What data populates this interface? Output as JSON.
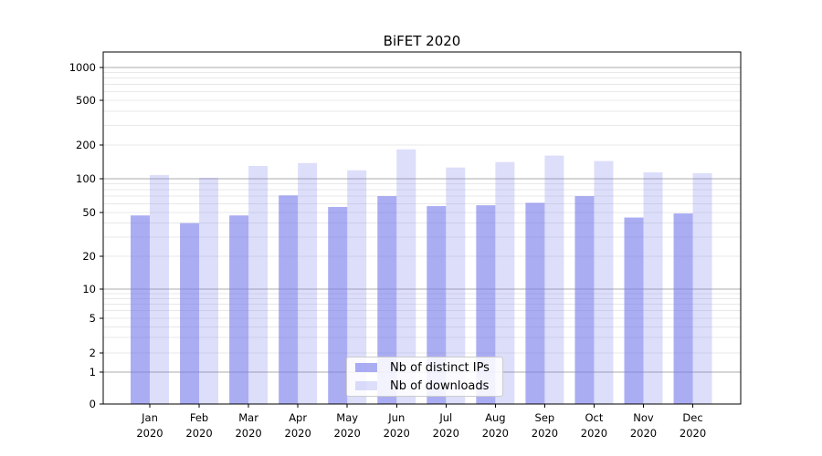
{
  "chart_data": {
    "type": "bar",
    "title": "BiFET 2020",
    "categories": [
      "Jan",
      "Feb",
      "Mar",
      "Apr",
      "May",
      "Jun",
      "Jul",
      "Aug",
      "Sep",
      "Oct",
      "Nov",
      "Dec"
    ],
    "category_year": "2020",
    "series": [
      {
        "name": "Nb of distinct IPs",
        "color": "#787BEB",
        "alpha": 0.62,
        "values": [
          47,
          40,
          47,
          71,
          56,
          70,
          57,
          58,
          61,
          70,
          45,
          49
        ]
      },
      {
        "name": "Nb of downloads",
        "color": "#787BEB",
        "alpha": 0.25,
        "values": [
          108,
          102,
          130,
          138,
          119,
          183,
          126,
          141,
          161,
          144,
          114,
          112
        ]
      }
    ],
    "yscale": "symlog",
    "yticks": [
      0,
      1,
      2,
      5,
      10,
      20,
      50,
      100,
      200,
      500,
      1000
    ],
    "ylim": [
      0,
      1400
    ],
    "grid": "both",
    "legend_position": "lower center",
    "colors": {
      "bar_dark": "#a5a7f1",
      "bar_light": "#dadbf8",
      "grid_minor": "#e8e8e8",
      "grid_major": "#ababab",
      "spine": "#000000",
      "text": "#000000"
    }
  }
}
